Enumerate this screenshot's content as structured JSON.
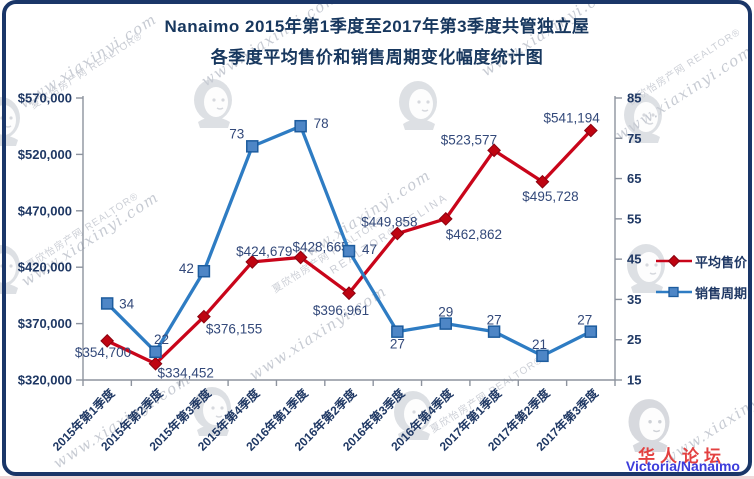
{
  "page": {
    "branding": {
      "forum": "华人论坛",
      "region": "Victoria/Nanaimo"
    },
    "watermark": {
      "url_text": "www.xiaxinyi.com",
      "agency_text": "夏欣怡房产网  REALTOR®",
      "realtor_selina_text": "REALTOR® SELINA"
    }
  },
  "chart_data": {
    "type": "line",
    "title": "Nanaimo 2015年第1季度至2017年第3季度共管独立屋",
    "subtitle": "各季度平均售价和销售周期变化幅度统计图",
    "grid": false,
    "legend_position": "right",
    "categories": [
      "2015年第1季度",
      "2015年第2季度",
      "2015年第3季度",
      "2015年第4季度",
      "2016年第1季度",
      "2016年第2季度",
      "2016年第3季度",
      "2016年第4季度",
      "2017年第1季度",
      "2017年第2季度",
      "2017年第3季度"
    ],
    "left_axis": {
      "min": 320000,
      "max": 570000,
      "tick_labels": [
        "$320,000",
        "$370,000",
        "$420,000",
        "$470,000",
        "$520,000",
        "$570,000"
      ]
    },
    "right_axis": {
      "min": 15,
      "max": 85,
      "tick_labels": [
        "15",
        "25",
        "35",
        "45",
        "55",
        "65",
        "75",
        "85"
      ]
    },
    "series": [
      {
        "name": "平均售价",
        "axis": "left",
        "marker": "diamond",
        "color": "#C9051A",
        "marker_fill": "#BE0411",
        "marker_stroke": "#8A0310",
        "values": [
          354700,
          334452,
          376155,
          424679,
          428665,
          396961,
          449858,
          462862,
          523577,
          495728,
          541194
        ],
        "labels": [
          "$354,700",
          "$334,452",
          "$376,155",
          "$424,679",
          "$428,665",
          "$396,961",
          "$449,858",
          "$462,862",
          "$523,577",
          "$495,728",
          "$541,194"
        ],
        "label_pos": [
          [
            24,
            16,
            "e"
          ],
          [
            2,
            14,
            "s"
          ],
          [
            2,
            17,
            "s"
          ],
          [
            12,
            -6,
            "m"
          ],
          [
            20,
            -6,
            "m"
          ],
          [
            -8,
            22,
            "m"
          ],
          [
            -8,
            -7,
            "m"
          ],
          [
            0,
            20,
            "s"
          ],
          [
            3,
            -6,
            "e"
          ],
          [
            8,
            19,
            "m"
          ],
          [
            9,
            -8,
            "e"
          ]
        ]
      },
      {
        "name": "销售周期",
        "axis": "right",
        "marker": "square",
        "color": "#2E7CC3",
        "marker_fill": "#4E86C6",
        "marker_stroke": "#1D5C9E",
        "values": [
          34,
          22,
          42,
          73,
          78,
          47,
          27,
          29,
          27,
          21,
          27
        ],
        "labels": [
          "34",
          "22",
          "42",
          "73",
          "78",
          "47",
          "27",
          "29",
          "27",
          "21",
          "27"
        ],
        "label_pos": [
          [
            12,
            5,
            "s"
          ],
          [
            6,
            -8,
            "m"
          ],
          [
            -10,
            2,
            "e"
          ],
          [
            -8,
            -8,
            "e"
          ],
          [
            13,
            2,
            "s"
          ],
          [
            13,
            3,
            "s"
          ],
          [
            0,
            17,
            "m"
          ],
          [
            0,
            -7,
            "m"
          ],
          [
            0,
            -7,
            "m"
          ],
          [
            -3,
            -7,
            "m"
          ],
          [
            -6,
            -7,
            "m"
          ]
        ]
      }
    ]
  }
}
